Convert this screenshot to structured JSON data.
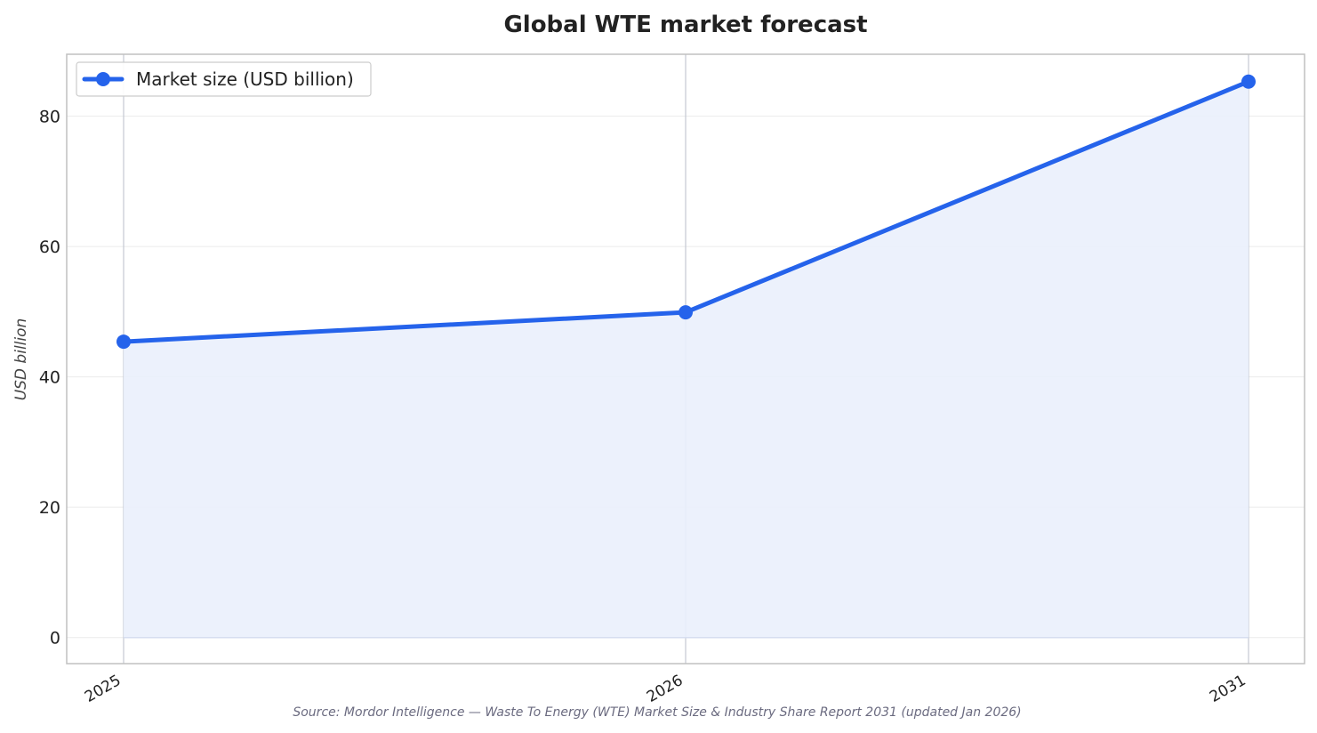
{
  "chart_data": {
    "type": "area",
    "title": "Global WTE market forecast",
    "xlabel": "",
    "ylabel": "USD billion",
    "categories": [
      "2025",
      "2026",
      "2031"
    ],
    "series": [
      {
        "name": "Market size (USD billion)",
        "values": [
          45.4,
          49.9,
          85.3
        ]
      }
    ],
    "ylim": [
      -4,
      89.5
    ],
    "yticks": [
      0,
      20,
      40,
      60,
      80
    ],
    "grid": true,
    "legend": "top-left",
    "source": "Source: Mordor Intelligence — Waste To Energy (WTE) Market Size & Industry Share Report 2031 (updated Jan 2026)",
    "colors": {
      "line": "#2563eb",
      "fill": "#eaf0fc",
      "grid": "#ebebeb",
      "vgrid": "#c4c8d2",
      "frame": "#c0c0c0"
    }
  }
}
